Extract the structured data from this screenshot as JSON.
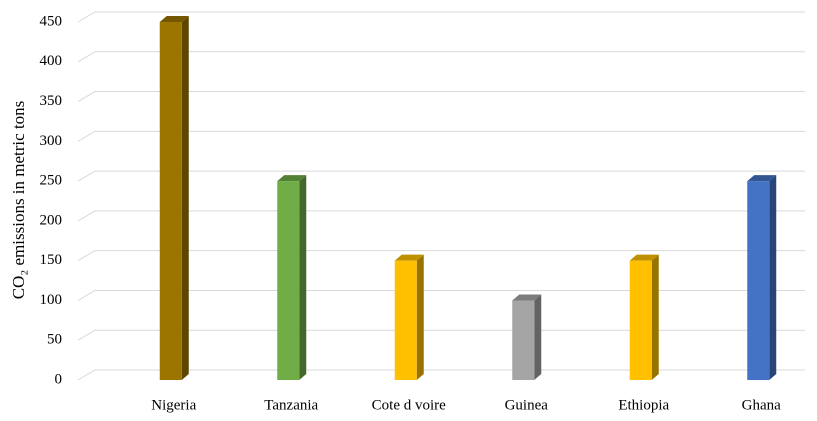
{
  "chart_data": {
    "type": "bar3d",
    "y_label": "CO₂ emissions in metric tons",
    "categories": [
      "Nigeria",
      "Tanzania",
      "Cote d voire",
      "Guinea",
      "Ethiopia",
      "Ghana"
    ],
    "values": [
      450,
      250,
      150,
      100,
      150,
      250
    ],
    "colors": [
      "#9c7400",
      "#70ad47",
      "#ffc000",
      "#a5a5a5",
      "#ffc000",
      "#4472c4"
    ],
    "ylim": [
      0,
      450
    ],
    "yticks": [
      0,
      50,
      100,
      150,
      200,
      250,
      300,
      350,
      400,
      450
    ],
    "grid": true
  }
}
